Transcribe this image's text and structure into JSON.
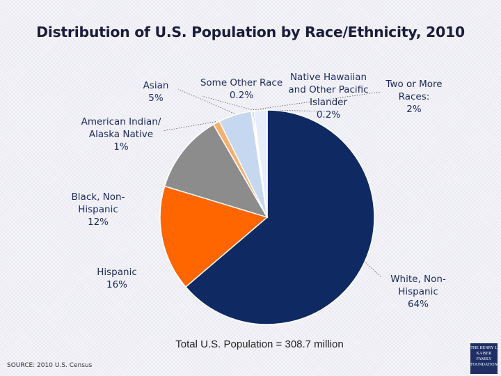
{
  "page_title": "Distribution of U.S. Population by Race/Ethnicity, 2010",
  "total_note": "Total U.S. Population = 308.7 million",
  "source": "SOURCE: 2010 U.S. Census",
  "logo": {
    "lines": [
      "THE HENRY J.",
      "KAISER",
      "FAMILY",
      "FOUNDATION"
    ]
  },
  "chart_data": {
    "type": "pie",
    "title": "Distribution of U.S. Population by Race/Ethnicity, 2010",
    "start_angle_deg": 0,
    "direction": "clockwise",
    "slices": [
      {
        "name": "White, Non-Hispanic",
        "value": 64,
        "label_lines": [
          "White, Non-",
          "Hispanic",
          "64%"
        ],
        "color": "#0f2a63"
      },
      {
        "name": "Hispanic",
        "value": 16,
        "label_lines": [
          "Hispanic",
          "16%"
        ],
        "color": "#ff6600"
      },
      {
        "name": "Black, Non-Hispanic",
        "value": 12,
        "label_lines": [
          "Black, Non-",
          "Hispanic",
          "12%"
        ],
        "color": "#8c8c8c"
      },
      {
        "name": "American Indian/Alaska Native",
        "value": 1,
        "label_lines": [
          "American Indian/",
          "Alaska Native",
          "1%"
        ],
        "color": "#f5b06e"
      },
      {
        "name": "Asian",
        "value": 5,
        "label_lines": [
          "Asian",
          "5%"
        ],
        "color": "#c6d8ef"
      },
      {
        "name": "Some Other Race",
        "value": 0.2,
        "label_lines": [
          "Some Other Race",
          "0.2%"
        ],
        "color": "#b0b0b0"
      },
      {
        "name": "Native Hawaiian and Other Pacific Islander",
        "value": 0.2,
        "label_lines": [
          "Native Hawaiian",
          "and Other Pacific",
          "Islander",
          "0.2%"
        ],
        "color": "#5a6fa8"
      },
      {
        "name": "Two or More Races",
        "value": 2,
        "label_lines": [
          "Two or More",
          "Races:",
          "2%"
        ],
        "color": "#e6eefb"
      }
    ]
  }
}
